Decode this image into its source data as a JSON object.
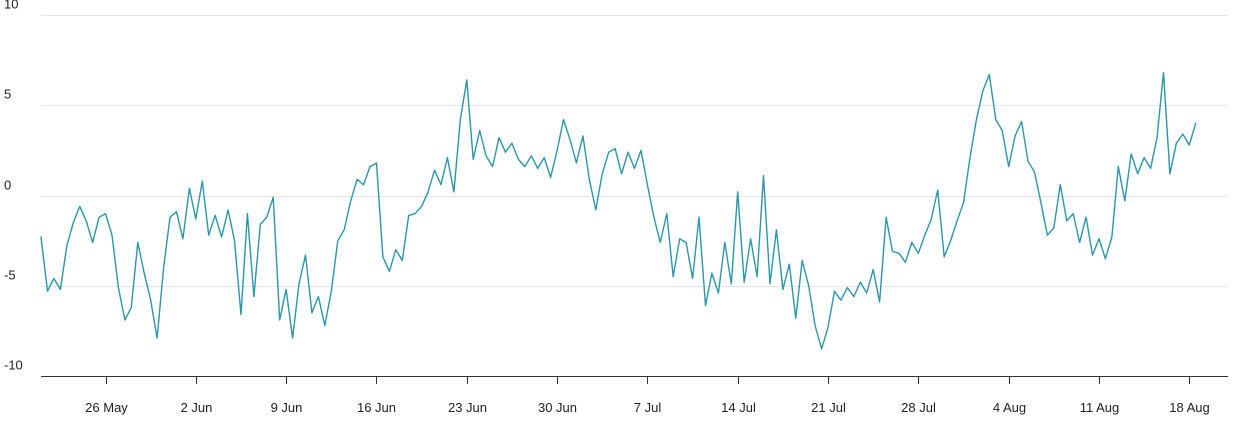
{
  "chart_data": {
    "type": "line",
    "title": "",
    "xlabel": "",
    "ylabel": "",
    "grid": true,
    "legend": "none",
    "x_range": [
      "2024-05-21",
      "2024-08-21"
    ],
    "ylim": [
      -10,
      10
    ],
    "y_ticks": [
      -10,
      -5,
      0,
      5,
      10
    ],
    "x_ticks": [
      {
        "date": "2024-05-26",
        "label": "26 May"
      },
      {
        "date": "2024-06-02",
        "label": "2 Jun"
      },
      {
        "date": "2024-06-09",
        "label": "9 Jun"
      },
      {
        "date": "2024-06-16",
        "label": "16 Jun"
      },
      {
        "date": "2024-06-23",
        "label": "23 Jun"
      },
      {
        "date": "2024-06-30",
        "label": "30 Jun"
      },
      {
        "date": "2024-07-07",
        "label": "7 Jul"
      },
      {
        "date": "2024-07-14",
        "label": "14 Jul"
      },
      {
        "date": "2024-07-21",
        "label": "21 Jul"
      },
      {
        "date": "2024-07-28",
        "label": "28 Jul"
      },
      {
        "date": "2024-08-04",
        "label": "4 Aug"
      },
      {
        "date": "2024-08-11",
        "label": "11 Aug"
      },
      {
        "date": "2024-08-18",
        "label": "18 Aug"
      }
    ],
    "series": [
      {
        "color": "#2a96a8",
        "points": [
          [
            "2024-05-21",
            -2.3
          ],
          [
            "2024-05-21T12:00",
            -5.3
          ],
          [
            "2024-05-22",
            -4.6
          ],
          [
            "2024-05-22T12:00",
            -5.2
          ],
          [
            "2024-05-23",
            -2.8
          ],
          [
            "2024-05-23T12:00",
            -1.5
          ],
          [
            "2024-05-24",
            -0.6
          ],
          [
            "2024-05-24T12:00",
            -1.4
          ],
          [
            "2024-05-25",
            -2.6
          ],
          [
            "2024-05-25T12:00",
            -1.2
          ],
          [
            "2024-05-26",
            -1.0
          ],
          [
            "2024-05-26T12:00",
            -2.2
          ],
          [
            "2024-05-27",
            -5.1
          ],
          [
            "2024-05-27T12:00",
            -6.9
          ],
          [
            "2024-05-28",
            -6.2
          ],
          [
            "2024-05-28T12:00",
            -2.6
          ],
          [
            "2024-05-29",
            -4.3
          ],
          [
            "2024-05-29T12:00",
            -5.8
          ],
          [
            "2024-05-30",
            -7.9
          ],
          [
            "2024-05-30T12:00",
            -4.0
          ],
          [
            "2024-05-31",
            -1.2
          ],
          [
            "2024-05-31T12:00",
            -0.9
          ],
          [
            "2024-06-01",
            -2.4
          ],
          [
            "2024-06-01T12:00",
            0.4
          ],
          [
            "2024-06-02",
            -1.3
          ],
          [
            "2024-06-02T12:00",
            0.8
          ],
          [
            "2024-06-03",
            -2.2
          ],
          [
            "2024-06-03T12:00",
            -1.1
          ],
          [
            "2024-06-04",
            -2.3
          ],
          [
            "2024-06-04T12:00",
            -0.8
          ],
          [
            "2024-06-05",
            -2.5
          ],
          [
            "2024-06-05T12:00",
            -6.6
          ],
          [
            "2024-06-06",
            -1.0
          ],
          [
            "2024-06-06T12:00",
            -5.6
          ],
          [
            "2024-06-07",
            -1.6
          ],
          [
            "2024-06-07T12:00",
            -1.2
          ],
          [
            "2024-06-08",
            -0.1
          ],
          [
            "2024-06-08T12:00",
            -6.9
          ],
          [
            "2024-06-09",
            -5.2
          ],
          [
            "2024-06-09T12:00",
            -7.9
          ],
          [
            "2024-06-10",
            -4.9
          ],
          [
            "2024-06-10T12:00",
            -3.3
          ],
          [
            "2024-06-11",
            -6.5
          ],
          [
            "2024-06-11T12:00",
            -5.6
          ],
          [
            "2024-06-12",
            -7.2
          ],
          [
            "2024-06-12T12:00",
            -5.3
          ],
          [
            "2024-06-13",
            -2.5
          ],
          [
            "2024-06-13T12:00",
            -1.9
          ],
          [
            "2024-06-14",
            -0.3
          ],
          [
            "2024-06-14T12:00",
            0.9
          ],
          [
            "2024-06-15",
            0.6
          ],
          [
            "2024-06-15T12:00",
            1.6
          ],
          [
            "2024-06-16",
            1.8
          ],
          [
            "2024-06-16T12:00",
            -3.4
          ],
          [
            "2024-06-17",
            -4.2
          ],
          [
            "2024-06-17T12:00",
            -3.0
          ],
          [
            "2024-06-18",
            -3.6
          ],
          [
            "2024-06-18T12:00",
            -1.1
          ],
          [
            "2024-06-19",
            -1.0
          ],
          [
            "2024-06-19T12:00",
            -0.6
          ],
          [
            "2024-06-20",
            0.2
          ],
          [
            "2024-06-20T12:00",
            1.4
          ],
          [
            "2024-06-21",
            0.6
          ],
          [
            "2024-06-21T12:00",
            2.1
          ],
          [
            "2024-06-22",
            0.2
          ],
          [
            "2024-06-22T12:00",
            4.2
          ],
          [
            "2024-06-23",
            6.4
          ],
          [
            "2024-06-23T12:00",
            2.0
          ],
          [
            "2024-06-24",
            3.6
          ],
          [
            "2024-06-24T12:00",
            2.2
          ],
          [
            "2024-06-25",
            1.6
          ],
          [
            "2024-06-25T12:00",
            3.2
          ],
          [
            "2024-06-26",
            2.4
          ],
          [
            "2024-06-26T12:00",
            2.9
          ],
          [
            "2024-06-27",
            2.0
          ],
          [
            "2024-06-27T12:00",
            1.6
          ],
          [
            "2024-06-28",
            2.2
          ],
          [
            "2024-06-28T12:00",
            1.5
          ],
          [
            "2024-06-29",
            2.1
          ],
          [
            "2024-06-29T12:00",
            1.0
          ],
          [
            "2024-06-30",
            2.5
          ],
          [
            "2024-06-30T12:00",
            4.2
          ],
          [
            "2024-07-01",
            3.1
          ],
          [
            "2024-07-01T12:00",
            1.8
          ],
          [
            "2024-07-02",
            3.3
          ],
          [
            "2024-07-02T12:00",
            0.9
          ],
          [
            "2024-07-03",
            -0.8
          ],
          [
            "2024-07-03T12:00",
            1.2
          ],
          [
            "2024-07-04",
            2.4
          ],
          [
            "2024-07-04T12:00",
            2.6
          ],
          [
            "2024-07-05",
            1.2
          ],
          [
            "2024-07-05T12:00",
            2.4
          ],
          [
            "2024-07-06",
            1.5
          ],
          [
            "2024-07-06T12:00",
            2.5
          ],
          [
            "2024-07-07",
            0.6
          ],
          [
            "2024-07-07T12:00",
            -1.2
          ],
          [
            "2024-07-08",
            -2.6
          ],
          [
            "2024-07-08T12:00",
            -1.0
          ],
          [
            "2024-07-09",
            -4.5
          ],
          [
            "2024-07-09T12:00",
            -2.4
          ],
          [
            "2024-07-10",
            -2.6
          ],
          [
            "2024-07-10T12:00",
            -4.6
          ],
          [
            "2024-07-11",
            -1.2
          ],
          [
            "2024-07-11T12:00",
            -6.1
          ],
          [
            "2024-07-12",
            -4.3
          ],
          [
            "2024-07-12T12:00",
            -5.4
          ],
          [
            "2024-07-13",
            -2.6
          ],
          [
            "2024-07-13T12:00",
            -4.9
          ],
          [
            "2024-07-14",
            0.2
          ],
          [
            "2024-07-14T12:00",
            -4.8
          ],
          [
            "2024-07-15",
            -2.4
          ],
          [
            "2024-07-15T12:00",
            -4.5
          ],
          [
            "2024-07-16",
            1.1
          ],
          [
            "2024-07-16T12:00",
            -4.9
          ],
          [
            "2024-07-17",
            -1.9
          ],
          [
            "2024-07-17T12:00",
            -5.2
          ],
          [
            "2024-07-18",
            -3.8
          ],
          [
            "2024-07-18T12:00",
            -6.8
          ],
          [
            "2024-07-19",
            -3.6
          ],
          [
            "2024-07-19T12:00",
            -5.0
          ],
          [
            "2024-07-20",
            -7.2
          ],
          [
            "2024-07-20T12:00",
            -8.5
          ],
          [
            "2024-07-21",
            -7.3
          ],
          [
            "2024-07-21T12:00",
            -5.3
          ],
          [
            "2024-07-22",
            -5.8
          ],
          [
            "2024-07-22T12:00",
            -5.1
          ],
          [
            "2024-07-23",
            -5.6
          ],
          [
            "2024-07-23T12:00",
            -4.8
          ],
          [
            "2024-07-24",
            -5.4
          ],
          [
            "2024-07-24T12:00",
            -4.1
          ],
          [
            "2024-07-25",
            -5.9
          ],
          [
            "2024-07-25T12:00",
            -1.2
          ],
          [
            "2024-07-26",
            -3.1
          ],
          [
            "2024-07-26T12:00",
            -3.2
          ],
          [
            "2024-07-27",
            -3.7
          ],
          [
            "2024-07-27T12:00",
            -2.6
          ],
          [
            "2024-07-28",
            -3.2
          ],
          [
            "2024-07-28T12:00",
            -2.2
          ],
          [
            "2024-07-29",
            -1.3
          ],
          [
            "2024-07-29T12:00",
            0.3
          ],
          [
            "2024-07-30",
            -3.4
          ],
          [
            "2024-07-30T12:00",
            -2.5
          ],
          [
            "2024-07-31",
            -1.4
          ],
          [
            "2024-07-31T12:00",
            -0.4
          ],
          [
            "2024-08-01",
            2.1
          ],
          [
            "2024-08-01T12:00",
            4.2
          ],
          [
            "2024-08-02",
            5.8
          ],
          [
            "2024-08-02T12:00",
            6.7
          ],
          [
            "2024-08-03",
            4.2
          ],
          [
            "2024-08-03T12:00",
            3.6
          ],
          [
            "2024-08-04",
            1.6
          ],
          [
            "2024-08-04T12:00",
            3.3
          ],
          [
            "2024-08-05",
            4.1
          ],
          [
            "2024-08-05T12:00",
            1.9
          ],
          [
            "2024-08-06",
            1.3
          ],
          [
            "2024-08-06T12:00",
            -0.4
          ],
          [
            "2024-08-07",
            -2.2
          ],
          [
            "2024-08-07T12:00",
            -1.8
          ],
          [
            "2024-08-08",
            0.6
          ],
          [
            "2024-08-08T12:00",
            -1.4
          ],
          [
            "2024-08-09",
            -1.0
          ],
          [
            "2024-08-09T12:00",
            -2.6
          ],
          [
            "2024-08-10",
            -1.2
          ],
          [
            "2024-08-10T12:00",
            -3.3
          ],
          [
            "2024-08-11",
            -2.4
          ],
          [
            "2024-08-11T12:00",
            -3.5
          ],
          [
            "2024-08-12",
            -2.3
          ],
          [
            "2024-08-12T12:00",
            1.6
          ],
          [
            "2024-08-13",
            -0.3
          ],
          [
            "2024-08-13T12:00",
            2.3
          ],
          [
            "2024-08-14",
            1.2
          ],
          [
            "2024-08-14T12:00",
            2.1
          ],
          [
            "2024-08-15",
            1.5
          ],
          [
            "2024-08-15T12:00",
            3.2
          ],
          [
            "2024-08-16",
            6.8
          ],
          [
            "2024-08-16T12:00",
            1.2
          ],
          [
            "2024-08-17",
            2.9
          ],
          [
            "2024-08-17T12:00",
            3.4
          ],
          [
            "2024-08-18",
            2.8
          ],
          [
            "2024-08-18T12:00",
            4.0
          ]
        ]
      }
    ]
  }
}
